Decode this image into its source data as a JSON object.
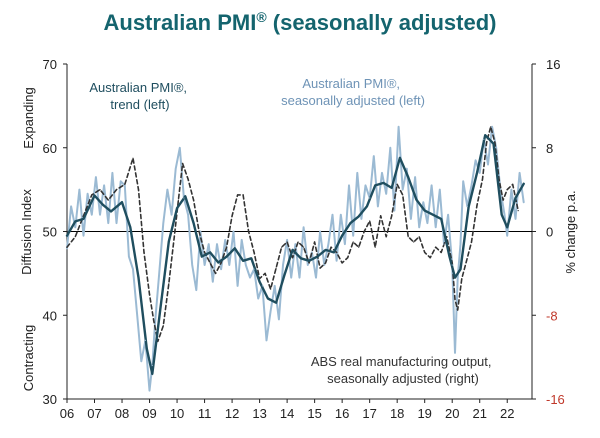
{
  "chart_data": {
    "type": "line",
    "title": "Australian PMI",
    "title_mark": "®",
    "title_suffix": " (seasonally adjusted)",
    "ylabel_left": "Diffusion Index",
    "ylabel_left_top": "Expanding",
    "ylabel_left_bottom": "Contracting",
    "ylabel_right": "% change p.a.",
    "ylim_left": [
      30,
      70
    ],
    "ylim_right": [
      -16,
      16
    ],
    "left_ticks": [
      "70",
      "60",
      "50",
      "40",
      "30"
    ],
    "right_ticks": [
      "16",
      "8",
      "0",
      "-8",
      "-16"
    ],
    "x_ticks": [
      "06",
      "07",
      "08",
      "09",
      "10",
      "11",
      "12",
      "13",
      "14",
      "15",
      "16",
      "17",
      "18",
      "19",
      "20",
      "21",
      "22"
    ],
    "x_range": [
      2006,
      2022.9
    ],
    "reference_line": 50,
    "colors": {
      "title": "#14646e",
      "trend": "#1f4e5f",
      "sa": "#9bbad3",
      "abs": "#333333",
      "neg_tick": "#c0392b",
      "axis": "#222222"
    },
    "annotations": {
      "trend": [
        "Australian PMI®,",
        "trend (left)"
      ],
      "sa": [
        "Australian PMI®,",
        "seasonally adjusted (left)"
      ],
      "abs": [
        "ABS real manufacturing output,",
        "seasonally adjusted (right)"
      ]
    },
    "series": [
      {
        "name": "Australian PMI®, trend (left)",
        "axis": "left",
        "x": [
          2006.0,
          2006.3,
          2006.6,
          2007.0,
          2007.3,
          2007.6,
          2008.0,
          2008.3,
          2008.6,
          2008.9,
          2009.1,
          2009.4,
          2009.7,
          2010.0,
          2010.3,
          2010.6,
          2010.9,
          2011.2,
          2011.5,
          2011.8,
          2012.1,
          2012.4,
          2012.7,
          2013.0,
          2013.3,
          2013.6,
          2013.9,
          2014.2,
          2014.5,
          2014.8,
          2015.1,
          2015.4,
          2015.7,
          2016.0,
          2016.3,
          2016.6,
          2016.9,
          2017.2,
          2017.5,
          2017.8,
          2018.1,
          2018.4,
          2018.7,
          2019.0,
          2019.3,
          2019.6,
          2019.9,
          2020.1,
          2020.3,
          2020.6,
          2020.9,
          2021.2,
          2021.5,
          2021.8,
          2022.0,
          2022.3,
          2022.6
        ],
        "values": [
          49.5,
          51.2,
          51.5,
          54.3,
          53.2,
          52.4,
          53.5,
          50.5,
          44.5,
          36.0,
          33.0,
          41.0,
          48.8,
          52.8,
          54.2,
          51.0,
          47.0,
          47.5,
          46.3,
          47.0,
          48.0,
          46.5,
          46.8,
          44.0,
          42.0,
          41.5,
          44.8,
          47.8,
          46.8,
          46.5,
          47.0,
          47.8,
          47.5,
          49.5,
          51.0,
          51.8,
          53.0,
          55.5,
          55.8,
          55.2,
          58.8,
          56.5,
          53.8,
          52.5,
          52.0,
          51.5,
          47.0,
          44.5,
          45.5,
          53.0,
          57.0,
          61.5,
          60.5,
          52.0,
          50.5,
          54.0,
          55.7
        ]
      },
      {
        "name": "Australian PMI®, seasonally adjusted (left)",
        "axis": "left",
        "x": [
          2006.0,
          2006.15,
          2006.3,
          2006.45,
          2006.6,
          2006.75,
          2006.9,
          2007.05,
          2007.2,
          2007.35,
          2007.5,
          2007.65,
          2007.8,
          2007.95,
          2008.1,
          2008.25,
          2008.4,
          2008.55,
          2008.7,
          2008.85,
          2009.0,
          2009.1,
          2009.2,
          2009.35,
          2009.5,
          2009.65,
          2009.8,
          2009.95,
          2010.1,
          2010.25,
          2010.4,
          2010.55,
          2010.7,
          2010.85,
          2011.0,
          2011.15,
          2011.3,
          2011.45,
          2011.6,
          2011.75,
          2011.9,
          2012.05,
          2012.2,
          2012.35,
          2012.5,
          2012.65,
          2012.8,
          2012.95,
          2013.1,
          2013.25,
          2013.4,
          2013.55,
          2013.7,
          2013.85,
          2014.0,
          2014.15,
          2014.3,
          2014.45,
          2014.6,
          2014.75,
          2014.9,
          2015.05,
          2015.2,
          2015.35,
          2015.5,
          2015.65,
          2015.8,
          2015.95,
          2016.1,
          2016.25,
          2016.4,
          2016.55,
          2016.7,
          2016.85,
          2017.0,
          2017.15,
          2017.3,
          2017.45,
          2017.6,
          2017.75,
          2017.9,
          2018.05,
          2018.2,
          2018.35,
          2018.5,
          2018.65,
          2018.8,
          2018.95,
          2019.1,
          2019.25,
          2019.4,
          2019.55,
          2019.7,
          2019.85,
          2020.0,
          2020.1,
          2020.2,
          2020.3,
          2020.4,
          2020.55,
          2020.7,
          2020.85,
          2021.0,
          2021.15,
          2021.3,
          2021.45,
          2021.6,
          2021.75,
          2021.9,
          2022.0,
          2022.15,
          2022.3,
          2022.45,
          2022.6
        ],
        "values": [
          48.0,
          53.0,
          50.5,
          55.0,
          49.5,
          54.5,
          52.0,
          56.5,
          52.0,
          55.5,
          51.0,
          57.0,
          51.0,
          56.0,
          55.5,
          47.0,
          45.5,
          40.0,
          34.5,
          37.0,
          31.0,
          34.0,
          39.0,
          45.0,
          51.0,
          55.0,
          52.0,
          57.5,
          60.0,
          54.0,
          52.0,
          46.0,
          43.0,
          50.0,
          46.0,
          48.5,
          44.0,
          48.5,
          45.5,
          49.0,
          46.0,
          50.0,
          43.5,
          49.0,
          46.0,
          44.5,
          45.5,
          42.0,
          43.5,
          37.0,
          40.5,
          43.5,
          39.5,
          46.0,
          49.0,
          44.5,
          48.5,
          44.5,
          50.5,
          46.0,
          47.5,
          44.5,
          50.0,
          46.0,
          48.5,
          52.0,
          46.5,
          52.0,
          48.5,
          55.5,
          49.5,
          57.0,
          51.5,
          55.5,
          54.0,
          59.0,
          53.0,
          57.0,
          54.5,
          60.0,
          52.5,
          62.5,
          55.0,
          57.5,
          51.5,
          56.5,
          50.5,
          53.5,
          51.0,
          55.5,
          50.5,
          55.0,
          48.5,
          52.0,
          46.0,
          35.5,
          44.5,
          48.5,
          56.0,
          53.0,
          55.5,
          58.5,
          57.0,
          61.0,
          58.0,
          62.5,
          60.0,
          55.0,
          52.0,
          49.5,
          55.0,
          51.5,
          57.0,
          53.5
        ]
      },
      {
        "name": "ABS real manufacturing output, seasonally adjusted (right)",
        "axis": "right",
        "x": [
          2006.0,
          2006.3,
          2006.6,
          2006.9,
          2007.2,
          2007.5,
          2007.8,
          2008.1,
          2008.4,
          2008.6,
          2008.8,
          2009.0,
          2009.15,
          2009.3,
          2009.5,
          2009.7,
          2009.9,
          2010.05,
          2010.2,
          2010.4,
          2010.6,
          2010.8,
          2011.0,
          2011.2,
          2011.4,
          2011.6,
          2011.8,
          2012.0,
          2012.2,
          2012.4,
          2012.6,
          2012.8,
          2013.0,
          2013.2,
          2013.4,
          2013.6,
          2013.8,
          2014.0,
          2014.2,
          2014.4,
          2014.6,
          2014.8,
          2015.0,
          2015.2,
          2015.4,
          2015.6,
          2015.8,
          2016.0,
          2016.2,
          2016.4,
          2016.6,
          2016.8,
          2017.0,
          2017.2,
          2017.4,
          2017.6,
          2017.8,
          2018.0,
          2018.2,
          2018.4,
          2018.6,
          2018.8,
          2019.0,
          2019.2,
          2019.4,
          2019.6,
          2019.8,
          2020.0,
          2020.1,
          2020.2,
          2020.35,
          2020.5,
          2020.7,
          2020.9,
          2021.1,
          2021.25,
          2021.4,
          2021.55,
          2021.7,
          2021.85,
          2022.0,
          2022.2,
          2022.4
        ],
        "values": [
          -1.5,
          -0.5,
          1.5,
          3.5,
          4.0,
          3.0,
          4.0,
          4.5,
          7.0,
          4.0,
          -2.0,
          -6.0,
          -8.5,
          -10.5,
          -9.0,
          -5.0,
          -0.5,
          3.0,
          6.5,
          5.0,
          3.0,
          0.0,
          -2.0,
          -3.0,
          -4.0,
          -3.0,
          -1.5,
          1.5,
          3.5,
          3.5,
          0.0,
          -2.0,
          -4.5,
          -4.0,
          -5.5,
          -3.5,
          -1.5,
          -1.0,
          -2.5,
          -1.0,
          -1.5,
          -3.0,
          -1.0,
          -3.5,
          -3.0,
          -1.5,
          -2.0,
          -3.0,
          -2.5,
          -1.0,
          -1.5,
          0.0,
          1.0,
          -1.5,
          1.5,
          -0.5,
          1.5,
          4.5,
          3.5,
          -0.5,
          -1.0,
          -0.5,
          -2.0,
          -2.5,
          -1.5,
          -2.0,
          -0.5,
          -3.0,
          -6.5,
          -7.5,
          -4.5,
          -3.0,
          -1.0,
          2.5,
          5.0,
          8.5,
          10.0,
          8.5,
          5.0,
          3.0,
          4.0,
          4.5,
          2.0
        ]
      }
    ]
  }
}
